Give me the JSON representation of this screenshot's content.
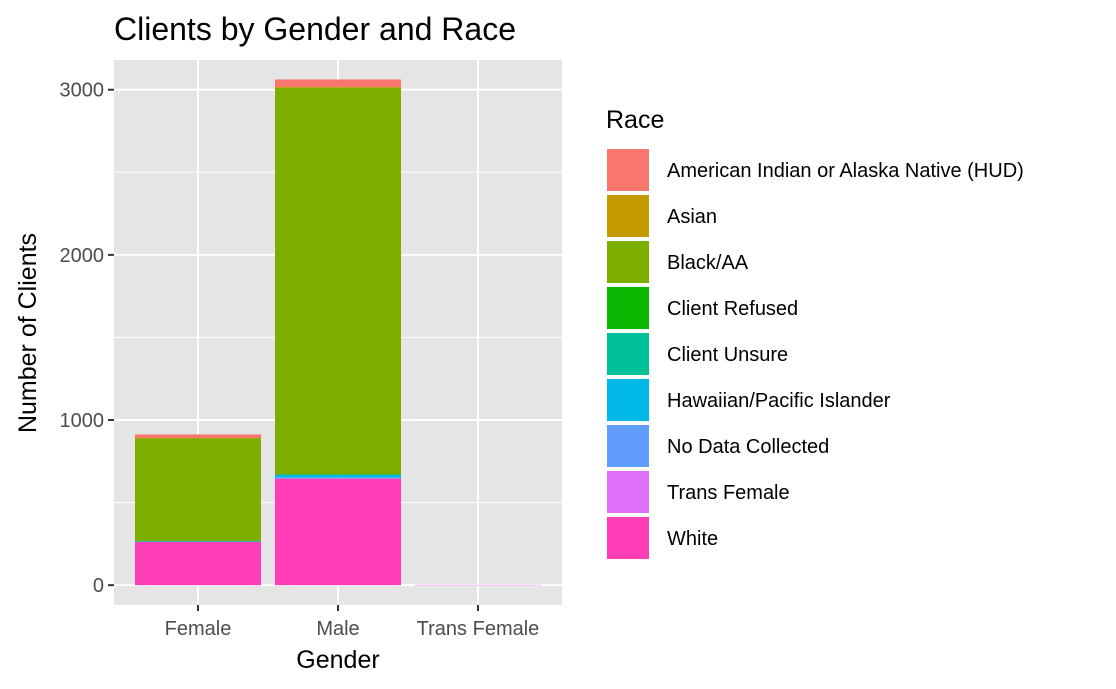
{
  "chart_data": {
    "type": "bar",
    "stacked": true,
    "title": "Clients by Gender and Race",
    "xlabel": "Gender",
    "ylabel": "Number of Clients",
    "categories": [
      "Female",
      "Male",
      "Trans Female"
    ],
    "ylim": [
      -120,
      3180
    ],
    "yticks": [
      0,
      1000,
      2000,
      3000
    ],
    "grid": true,
    "legend": {
      "title": "Race",
      "placement": "right"
    },
    "series": [
      {
        "name": "American Indian or Alaska Native (HUD)",
        "color": "#F8766D",
        "values": [
          22,
          45,
          0
        ]
      },
      {
        "name": "Asian",
        "color": "#C49A00",
        "values": [
          2,
          5,
          0
        ]
      },
      {
        "name": "Black/AA",
        "color": "#7CAE00",
        "values": [
          620,
          2340,
          0
        ]
      },
      {
        "name": "Client Refused",
        "color": "#0CB702",
        "values": [
          1,
          2,
          0
        ]
      },
      {
        "name": "Client Unsure",
        "color": "#00C19A",
        "values": [
          1,
          2,
          0
        ]
      },
      {
        "name": "Hawaiian/Pacific Islander",
        "color": "#00B8E7",
        "values": [
          3,
          15,
          0
        ]
      },
      {
        "name": "No Data Collected",
        "color": "#619CFF",
        "values": [
          2,
          8,
          0
        ]
      },
      {
        "name": "Trans Female",
        "color": "#DF70F8",
        "values": [
          0,
          0,
          2
        ]
      },
      {
        "name": "White",
        "color": "#FF3DB6",
        "values": [
          262,
          645,
          0
        ]
      }
    ]
  },
  "colors": {
    "panel_background": "#E5E5E5",
    "grid_line": "#FFFFFF",
    "tick_mark": "#333333"
  }
}
